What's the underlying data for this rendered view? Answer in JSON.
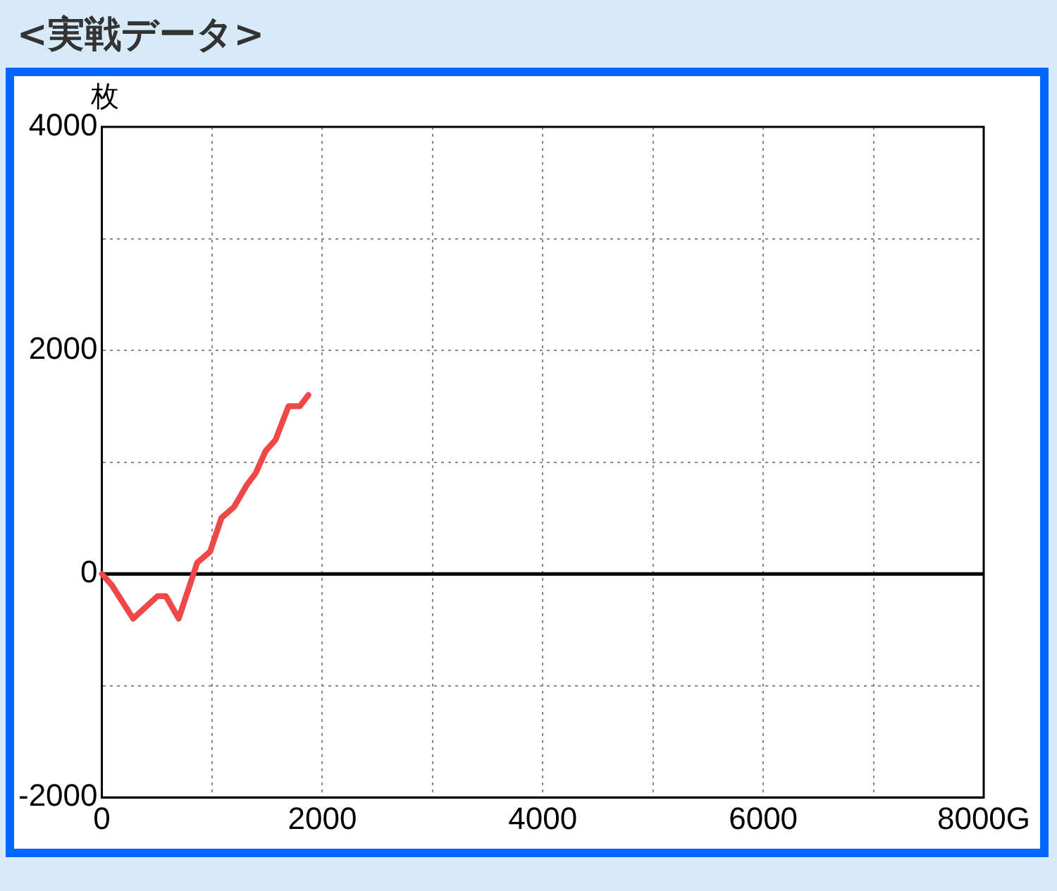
{
  "chart_data": {
    "type": "line",
    "title": "<実戦データ>",
    "ylabel": "枚",
    "x": [
      0,
      90,
      284,
      504,
      581,
      697,
      865,
      982,
      1085,
      1200,
      1318,
      1395,
      1486,
      1576,
      1693,
      1796,
      1873
    ],
    "series": [
      {
        "color": "#f04848",
        "values": [
          0,
          -100,
          -400,
          -200,
          -200,
          -400,
          100,
          200,
          500,
          600,
          800,
          900,
          1100,
          1200,
          1500,
          1500,
          1600
        ]
      }
    ],
    "xlim": [
      0,
      8000
    ],
    "xticks": [
      0,
      {
        "value": 1000,
        "label": null
      },
      2000,
      {
        "value": 3000,
        "label": null
      },
      4000,
      {
        "value": 5000,
        "label": null
      },
      6000,
      {
        "value": 7000,
        "label": null
      },
      {
        "value": 8000,
        "label": "8000G"
      }
    ],
    "ylim": [
      -2000,
      4000
    ],
    "yticks": [
      -2000,
      {
        "value": -1000,
        "label": null
      },
      0,
      {
        "value": 1000,
        "label": null
      },
      2000,
      {
        "value": 3000,
        "label": null
      },
      4000
    ],
    "ref_lines": [
      {
        "axis": "y",
        "value": 0,
        "color": "#000000"
      }
    ],
    "grid": true,
    "legend": false,
    "marker": "none",
    "line_style": "solid"
  }
}
